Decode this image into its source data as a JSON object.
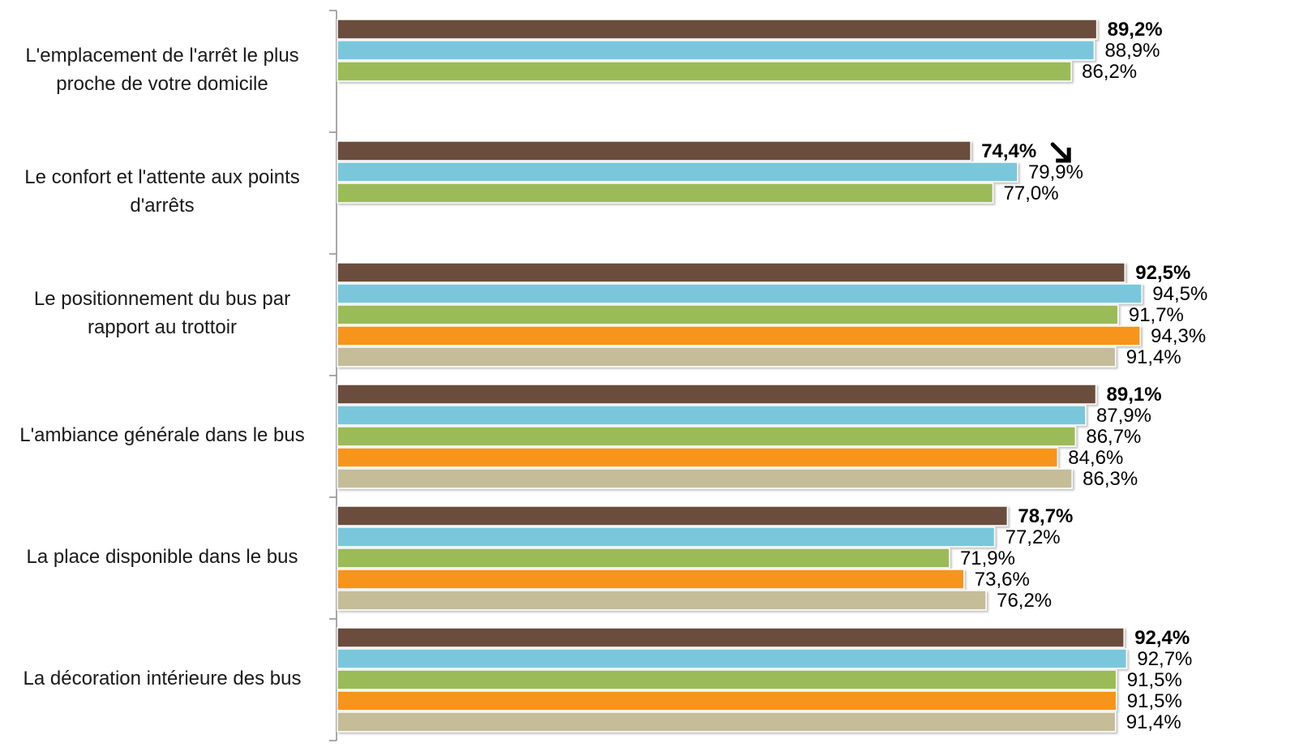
{
  "chart_data": {
    "type": "bar",
    "orientation": "horizontal",
    "value_format": "percent_comma_1dp",
    "xlim": [
      0,
      100
    ],
    "grid": false,
    "legend": "none",
    "colors": [
      "#6b4e3d",
      "#7ac7dc",
      "#9bbb59",
      "#f7941d",
      "#c4bd97"
    ],
    "categories": [
      {
        "label_lines": [
          "L'emplacement de l'arrêt le plus",
          "proche de votre domicile"
        ],
        "values": [
          89.2,
          88.9,
          86.2
        ],
        "value_labels": [
          "89,2%",
          "88,9%",
          "86,2%"
        ],
        "bold_first": true
      },
      {
        "label_lines": [
          "Le confort et l'attente aux points",
          "d'arrêts"
        ],
        "values": [
          74.4,
          79.9,
          77.0
        ],
        "value_labels": [
          "74,4%",
          "79,9%",
          "77,0%"
        ],
        "bold_first": true,
        "annotation": "down-arrow-icon"
      },
      {
        "label_lines": [
          "Le positionnement du bus par",
          "rapport au trottoir"
        ],
        "values": [
          92.5,
          94.5,
          91.7,
          94.3,
          91.4
        ],
        "value_labels": [
          "92,5%",
          "94,5%",
          "91,7%",
          "94,3%",
          "91,4%"
        ],
        "bold_first": true
      },
      {
        "label_lines": [
          "L'ambiance générale dans le bus"
        ],
        "values": [
          89.1,
          87.9,
          86.7,
          84.6,
          86.3
        ],
        "value_labels": [
          "89,1%",
          "87,9%",
          "86,7%",
          "84,6%",
          "86,3%"
        ],
        "bold_first": true
      },
      {
        "label_lines": [
          "La place disponible dans le bus"
        ],
        "values": [
          78.7,
          77.2,
          71.9,
          73.6,
          76.2
        ],
        "value_labels": [
          "78,7%",
          "77,2%",
          "71,9%",
          "73,6%",
          "76,2%"
        ],
        "bold_first": true
      },
      {
        "label_lines": [
          "La décoration intérieure des bus"
        ],
        "values": [
          92.4,
          92.7,
          91.5,
          91.5,
          91.4
        ],
        "value_labels": [
          "92,4%",
          "92,7%",
          "91,5%",
          "91,5%",
          "91,4%"
        ],
        "bold_first": true
      }
    ]
  }
}
